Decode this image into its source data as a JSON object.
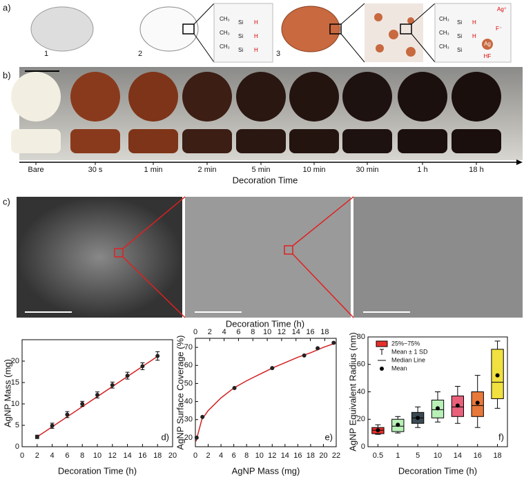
{
  "panel_labels": [
    "a)",
    "b)",
    "c)"
  ],
  "panel_a": {
    "steps": [
      "1",
      "2",
      "3"
    ],
    "chem": {
      "ch3": "CH₃",
      "si": "Si",
      "h": "H",
      "ag_ion": "Ag⁺",
      "f_ion": "F⁻",
      "ag": "Ag",
      "hf": "HF"
    }
  },
  "panel_b": {
    "categories": [
      "Bare",
      "30 s",
      "1 min",
      "2 min",
      "5 min",
      "10 min",
      "30 min",
      "1 h",
      "18 h"
    ],
    "axis_label": "Decoration Time"
  },
  "panel_c": {
    "axis_label": "Decoration Time (h)"
  },
  "chart_data": [
    {
      "type": "scatter",
      "x_label": "Decoration Time (h)",
      "y_label": "AgNP Mass (mg)",
      "panel": "d)",
      "color": "#222222",
      "fit_color": "#d32020",
      "x": [
        2,
        4,
        6,
        8,
        10,
        12,
        14,
        16,
        18
      ],
      "values": [
        2.3,
        4.9,
        7.5,
        10.0,
        12.1,
        14.4,
        16.6,
        18.8,
        21.2
      ],
      "errors": [
        0.4,
        0.6,
        0.7,
        0.6,
        0.7,
        0.7,
        0.8,
        0.8,
        1.0
      ],
      "fit": {
        "x": [
          2,
          18
        ],
        "y": [
          2.3,
          21.1
        ]
      },
      "xlim": [
        0,
        20
      ],
      "xticks": [
        0,
        2,
        4,
        6,
        8,
        10,
        12,
        14,
        16,
        18,
        20
      ],
      "ylim": [
        0,
        25
      ],
      "yticks": [
        0,
        5,
        10,
        15,
        20
      ]
    },
    {
      "type": "scatter",
      "x_label": "AgNP Mass (mg)",
      "y_label": "AgNP Surface Coverage (%)",
      "panel": "e)",
      "color": "#222222",
      "fit_color": "#d32020",
      "x": [
        0.2,
        1.1,
        6.1,
        12.0,
        17.0,
        19.1,
        21.6
      ],
      "values": [
        20,
        31.5,
        47.5,
        58.5,
        65.5,
        69.5,
        72.5
      ],
      "fit": {
        "x": [
          0.1,
          1,
          2,
          4,
          6,
          8,
          10,
          12,
          14,
          16,
          18,
          20,
          22
        ],
        "y": [
          18,
          30,
          35,
          42,
          47.5,
          51.5,
          55,
          58.5,
          61.5,
          64.5,
          67,
          70,
          72.5
        ]
      },
      "xlim": [
        0,
        22
      ],
      "xticks": [
        0,
        2,
        4,
        6,
        8,
        10,
        12,
        14,
        16,
        18,
        20,
        22
      ],
      "x2lim": [
        0,
        19.6
      ],
      "x2ticks": [
        0,
        2,
        4,
        6,
        8,
        10,
        12,
        14,
        16,
        18
      ],
      "ylim": [
        15,
        75
      ],
      "yticks": [
        20,
        30,
        40,
        50,
        60,
        70
      ]
    },
    {
      "type": "box",
      "x_label": "Decoration Time (h)",
      "y_label": "AgNP Equivalent Radius (nm)",
      "panel": "f)",
      "categories": [
        "0.5",
        "1",
        "5",
        "10",
        "14",
        "16",
        "18"
      ],
      "low": [
        9,
        10,
        14,
        18,
        17,
        14,
        28
      ],
      "q1": [
        9.5,
        11,
        17,
        21,
        22,
        22,
        35
      ],
      "median": [
        12,
        15,
        21,
        27,
        29,
        30,
        47
      ],
      "q3": [
        14,
        20,
        25,
        34,
        37,
        40,
        71
      ],
      "high": [
        16,
        22,
        29,
        40,
        44,
        52,
        77
      ],
      "mean": [
        12,
        16,
        21,
        28,
        30,
        32,
        52
      ],
      "colors": [
        "#e8302a",
        "#b8f0b8",
        "#3b4a52",
        "#b8f0b8",
        "#e8607a",
        "#e8783a",
        "#f0e040"
      ],
      "legend": [
        "25%~75%",
        "Mean ± 1 SD",
        "Median Line",
        "Mean"
      ],
      "legend_color": "#e8302a",
      "ylim": [
        0,
        80
      ],
      "yticks": [
        0,
        20,
        40,
        60,
        80
      ]
    }
  ]
}
